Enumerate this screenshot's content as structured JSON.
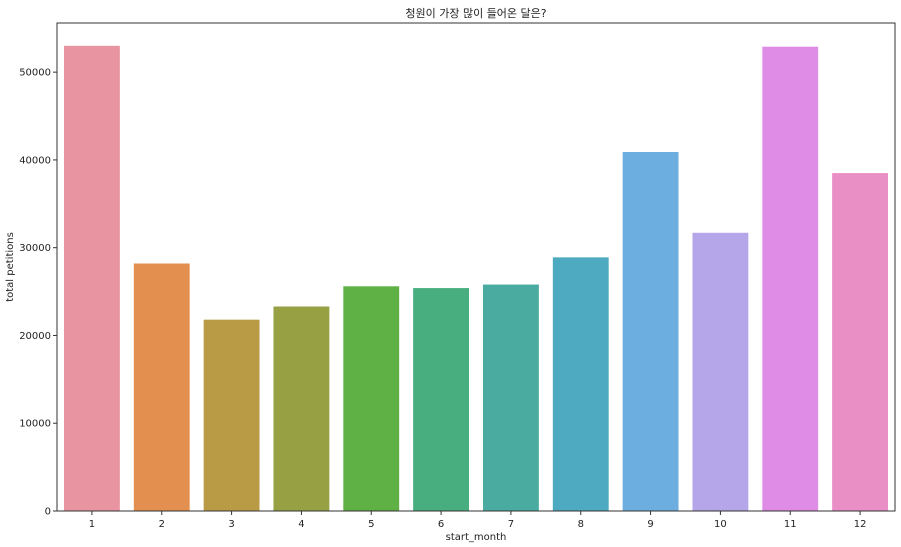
{
  "chart_data": {
    "type": "bar",
    "title": "청원이 가장 많이 들어온 달은?",
    "xlabel": "start_month",
    "ylabel": "total petitions",
    "categories": [
      "1",
      "2",
      "3",
      "4",
      "5",
      "6",
      "7",
      "8",
      "9",
      "10",
      "11",
      "12"
    ],
    "values": [
      53000,
      28200,
      21800,
      23300,
      25600,
      25400,
      25800,
      28900,
      40900,
      31700,
      52900,
      38500
    ],
    "colors": [
      "#e995a1",
      "#e38f4f",
      "#b99b46",
      "#97a144",
      "#5fb045",
      "#48ae7f",
      "#4aaba0",
      "#4daac0",
      "#6caee0",
      "#b5a6ea",
      "#df8ce6",
      "#ea8ec6"
    ],
    "ylim": [
      0,
      55600
    ],
    "yticks": [
      0,
      10000,
      20000,
      30000,
      40000,
      50000
    ],
    "ytick_labels": [
      "0",
      "10000",
      "20000",
      "30000",
      "40000",
      "50000"
    ],
    "grid": false,
    "legend": false
  }
}
